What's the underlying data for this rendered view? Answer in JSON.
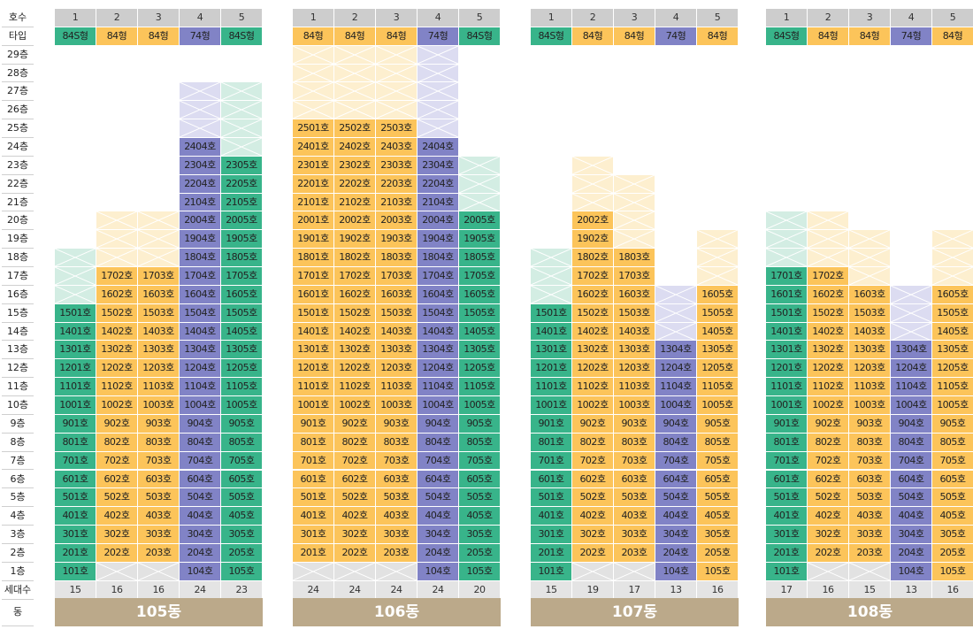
{
  "colors": {
    "84S형": "#38b48a",
    "84형": "#fcc45a",
    "74형": "#8183c6",
    "header": "#cdcdcd",
    "footer": "#bba98a",
    "no_unit": "#e2e2e2"
  },
  "row_labels": {
    "ho": "호수",
    "type": "타입",
    "floors": [
      "29층",
      "28층",
      "27층",
      "26층",
      "25층",
      "24층",
      "23층",
      "22층",
      "21층",
      "20층",
      "19층",
      "18층",
      "17층",
      "16층",
      "15층",
      "14층",
      "13층",
      "12층",
      "11층",
      "10층",
      "9층",
      "8층",
      "7층",
      "6층",
      "5층",
      "4층",
      "3층",
      "2층",
      "1층"
    ],
    "households": "세대수",
    "dong": "동"
  },
  "buildings": [
    {
      "name": "105동",
      "line_numbers": [
        "1",
        "2",
        "3",
        "4",
        "5"
      ],
      "types": [
        "84S형",
        "84형",
        "84형",
        "74형",
        "84S형"
      ],
      "households": [
        "15",
        "16",
        "16",
        "24",
        "23"
      ],
      "top_floors": [
        15,
        17,
        17,
        24,
        23
      ],
      "ghost_top": [
        18,
        20,
        20,
        27,
        27
      ],
      "first_floor_units": [
        "101호",
        "",
        "",
        "104호",
        "105호"
      ]
    },
    {
      "name": "106동",
      "line_numbers": [
        "1",
        "2",
        "3",
        "4",
        "5"
      ],
      "types": [
        "84형",
        "84형",
        "84형",
        "74형",
        "84S형"
      ],
      "households": [
        "24",
        "24",
        "24",
        "24",
        "20"
      ],
      "top_floors": [
        25,
        25,
        25,
        24,
        20
      ],
      "ghost_top": [
        29,
        29,
        29,
        29,
        23
      ],
      "first_floor_units": [
        "",
        "",
        "",
        "104호",
        "105호"
      ]
    },
    {
      "name": "107동",
      "line_numbers": [
        "1",
        "2",
        "3",
        "4",
        "5"
      ],
      "types": [
        "84S형",
        "84형",
        "84형",
        "74형",
        "84형"
      ],
      "households": [
        "15",
        "19",
        "17",
        "13",
        "16"
      ],
      "top_floors": [
        15,
        20,
        18,
        13,
        16
      ],
      "ghost_top": [
        18,
        23,
        22,
        16,
        19
      ],
      "first_floor_units": [
        "101호",
        "",
        "",
        "104호",
        "105호"
      ]
    },
    {
      "name": "108동",
      "line_numbers": [
        "1",
        "2",
        "3",
        "4",
        "5"
      ],
      "types": [
        "84S형",
        "84형",
        "84형",
        "74형",
        "84형"
      ],
      "households": [
        "17",
        "16",
        "15",
        "13",
        "16"
      ],
      "top_floors": [
        17,
        17,
        16,
        13,
        16
      ],
      "ghost_top": [
        20,
        20,
        19,
        16,
        19
      ],
      "first_floor_units": [
        "101호",
        "",
        "",
        "104호",
        "105호"
      ]
    }
  ]
}
